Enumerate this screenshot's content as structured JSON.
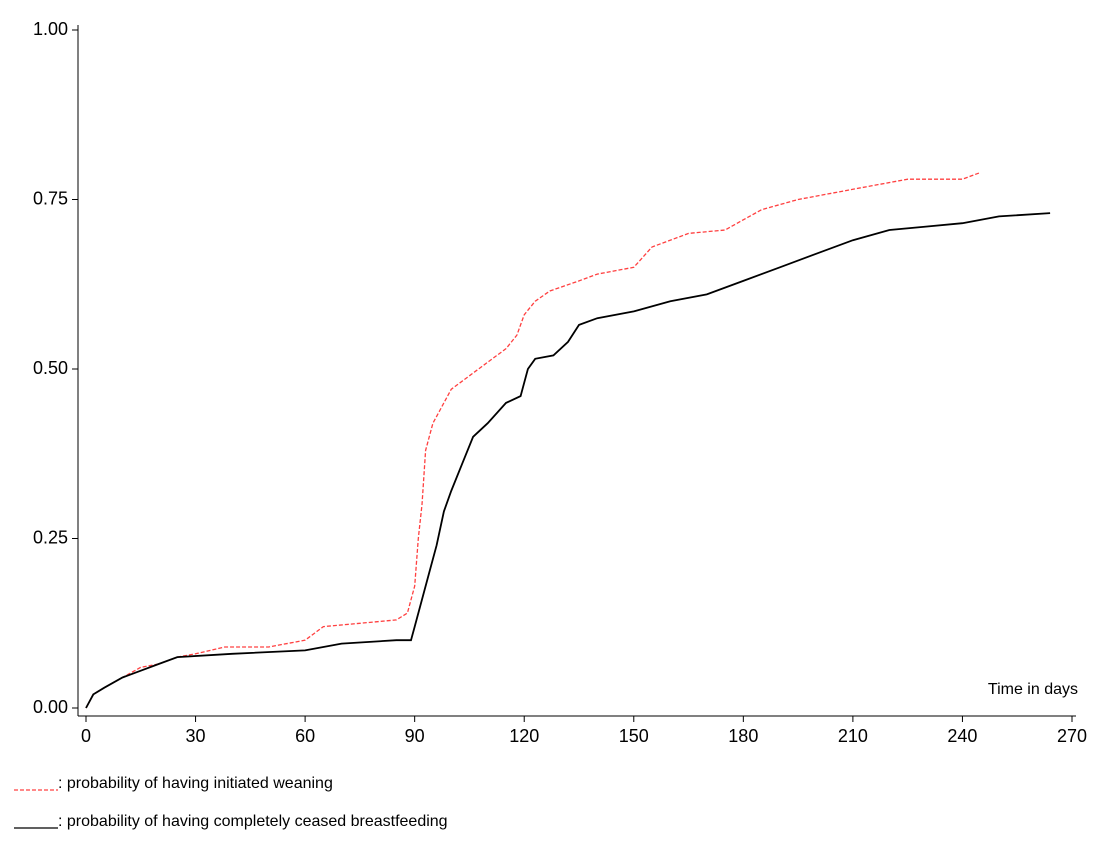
{
  "chart_data": {
    "type": "line",
    "x_label": "Time in days",
    "xlim": [
      0,
      270
    ],
    "xticks": [
      0,
      30,
      60,
      90,
      120,
      150,
      180,
      210,
      240,
      270
    ],
    "ylim": [
      0,
      1
    ],
    "yticks": [
      {
        "value": 0,
        "label": "0.00"
      },
      {
        "value": 0.25,
        "label": "0.25"
      },
      {
        "value": 0.5,
        "label": "0.50"
      },
      {
        "value": 0.75,
        "label": "0.75"
      },
      {
        "value": 1,
        "label": "1.00"
      }
    ],
    "series": [
      {
        "name": ": probability of having initiated weaning",
        "color": "#ff4040",
        "dashed": true,
        "x": [
          0,
          2,
          5,
          10,
          15,
          20,
          25,
          30,
          38,
          50,
          60,
          65,
          75,
          85,
          88,
          90,
          91,
          92,
          93,
          95,
          98,
          100,
          105,
          110,
          115,
          118,
          120,
          123,
          127,
          135,
          140,
          150,
          155,
          165,
          175,
          180,
          185,
          195,
          205,
          215,
          225,
          240,
          245
        ],
        "values": [
          0,
          0.02,
          0.03,
          0.045,
          0.06,
          0.065,
          0.075,
          0.08,
          0.09,
          0.09,
          0.1,
          0.12,
          0.125,
          0.13,
          0.14,
          0.18,
          0.25,
          0.3,
          0.38,
          0.42,
          0.45,
          0.47,
          0.49,
          0.51,
          0.53,
          0.55,
          0.58,
          0.6,
          0.615,
          0.63,
          0.64,
          0.65,
          0.68,
          0.7,
          0.705,
          0.72,
          0.735,
          0.75,
          0.76,
          0.77,
          0.78,
          0.78,
          0.79
        ]
      },
      {
        "name": ": probability of having completely ceased breastfeeding",
        "color": "#000000",
        "dashed": false,
        "x": [
          0,
          2,
          5,
          10,
          15,
          20,
          25,
          40,
          60,
          70,
          85,
          89,
          90,
          92,
          94,
          96,
          98,
          100,
          103,
          106,
          110,
          115,
          119,
          121,
          123,
          128,
          132,
          135,
          140,
          150,
          160,
          170,
          180,
          190,
          200,
          210,
          220,
          230,
          240,
          250,
          264
        ],
        "values": [
          0,
          0.02,
          0.03,
          0.045,
          0.055,
          0.065,
          0.075,
          0.08,
          0.085,
          0.095,
          0.1,
          0.1,
          0.12,
          0.16,
          0.2,
          0.24,
          0.29,
          0.32,
          0.36,
          0.4,
          0.42,
          0.45,
          0.46,
          0.5,
          0.515,
          0.52,
          0.54,
          0.565,
          0.575,
          0.585,
          0.6,
          0.61,
          0.63,
          0.65,
          0.67,
          0.69,
          0.705,
          0.71,
          0.715,
          0.725,
          0.73
        ]
      }
    ]
  }
}
